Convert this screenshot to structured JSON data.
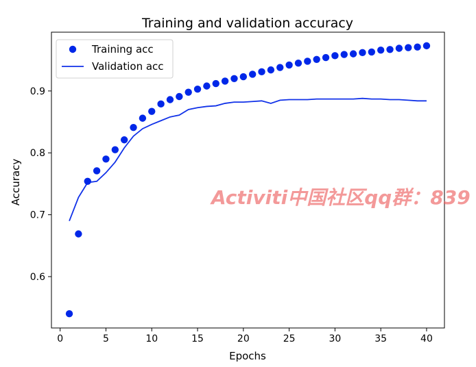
{
  "chart_data": {
    "type": "line",
    "title": "Training and validation accuracy",
    "xlabel": "Epochs",
    "ylabel": "Accuracy",
    "xlim": [
      -0.95,
      41.95
    ],
    "ylim": [
      0.517,
      0.995
    ],
    "x_ticks": [
      0,
      5,
      10,
      15,
      20,
      25,
      30,
      35,
      40
    ],
    "y_ticks": [
      0.6,
      0.7,
      0.8,
      0.9
    ],
    "x": [
      1,
      2,
      3,
      4,
      5,
      6,
      7,
      8,
      9,
      10,
      11,
      12,
      13,
      14,
      15,
      16,
      17,
      18,
      19,
      20,
      21,
      22,
      23,
      24,
      25,
      26,
      27,
      28,
      29,
      30,
      31,
      32,
      33,
      34,
      35,
      36,
      37,
      38,
      39,
      40
    ],
    "series": [
      {
        "name": "Training acc",
        "marker": "dot",
        "color": "#0027e8",
        "values": [
          0.54,
          0.669,
          0.754,
          0.771,
          0.79,
          0.805,
          0.821,
          0.841,
          0.856,
          0.867,
          0.879,
          0.886,
          0.891,
          0.898,
          0.903,
          0.908,
          0.912,
          0.916,
          0.92,
          0.923,
          0.927,
          0.931,
          0.934,
          0.938,
          0.942,
          0.945,
          0.948,
          0.951,
          0.954,
          0.957,
          0.959,
          0.96,
          0.962,
          0.963,
          0.966,
          0.967,
          0.969,
          0.97,
          0.971,
          0.973
        ]
      },
      {
        "name": "Validation acc",
        "marker": "line",
        "color": "#1031e8",
        "values": [
          0.69,
          0.728,
          0.752,
          0.754,
          0.768,
          0.785,
          0.808,
          0.827,
          0.839,
          0.846,
          0.852,
          0.858,
          0.861,
          0.87,
          0.873,
          0.875,
          0.876,
          0.88,
          0.882,
          0.882,
          0.883,
          0.884,
          0.88,
          0.885,
          0.886,
          0.886,
          0.886,
          0.887,
          0.887,
          0.887,
          0.887,
          0.887,
          0.888,
          0.887,
          0.887,
          0.886,
          0.886,
          0.885,
          0.884,
          0.884
        ]
      }
    ],
    "legend_position": "top-left",
    "grid": false
  },
  "watermark": {
    "text": "Activiti中国社区qq群：839"
  }
}
